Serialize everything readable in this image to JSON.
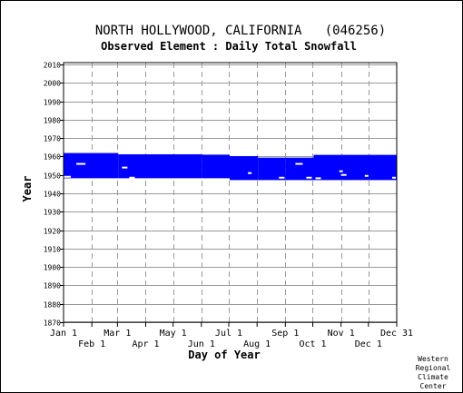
{
  "chart_data": {
    "type": "heatmap",
    "title": "NORTH HOLLYWOOD, CALIFORNIA   (046256)",
    "subtitle": "Observed Element : Daily Total Snowfall",
    "xlabel": "Day of Year",
    "ylabel": "Year",
    "ylim": [
      1870,
      2011
    ],
    "xlim": [
      0,
      365
    ],
    "y_ticks": [
      1870,
      1880,
      1890,
      1900,
      1910,
      1920,
      1930,
      1940,
      1950,
      1960,
      1970,
      1980,
      1990,
      2000,
      2010
    ],
    "x_ticks_top_row": [
      {
        "label": "Jan 1",
        "day": 0
      },
      {
        "label": "Mar 1",
        "day": 59
      },
      {
        "label": "May 1",
        "day": 120
      },
      {
        "label": "Jul 1",
        "day": 181
      },
      {
        "label": "Sep 1",
        "day": 243
      },
      {
        "label": "Nov 1",
        "day": 304
      },
      {
        "label": "Dec 31",
        "day": 365
      }
    ],
    "x_ticks_bottom_row": [
      {
        "label": "Feb 1",
        "day": 31
      },
      {
        "label": "Apr 1",
        "day": 90
      },
      {
        "label": "Jun 1",
        "day": 151
      },
      {
        "label": "Aug 1",
        "day": 212
      },
      {
        "label": "Oct 1",
        "day": 273
      },
      {
        "label": "Dec 1",
        "day": 334
      }
    ],
    "grid": true,
    "series": [
      {
        "color": "#0000ff",
        "segments": [
          {
            "day_start": 0,
            "day_end": 60,
            "year_start": 1948.2,
            "year_end": 1961.9
          },
          {
            "day_start": 60,
            "day_end": 152,
            "year_start": 1948.2,
            "year_end": 1961.2
          },
          {
            "day_start": 152,
            "day_end": 182,
            "year_start": 1948.2,
            "year_end": 1961.2
          },
          {
            "day_start": 182,
            "day_end": 213,
            "year_start": 1947.2,
            "year_end": 1960.2
          },
          {
            "day_start": 213,
            "day_end": 243,
            "year_start": 1947.2,
            "year_end": 1959.4
          },
          {
            "day_start": 243,
            "day_end": 274,
            "year_start": 1947.2,
            "year_end": 1959.4
          },
          {
            "day_start": 274,
            "day_end": 366,
            "year_start": 1947.2,
            "year_end": 1960.9
          }
        ],
        "missing_marks": [
          {
            "day_start": 0,
            "day_end": 8,
            "year": 1949
          },
          {
            "day_start": 14,
            "day_end": 24,
            "year": 1956
          },
          {
            "day_start": 64,
            "day_end": 70,
            "year": 1954
          },
          {
            "day_start": 72,
            "day_end": 78,
            "year": 1948.5
          },
          {
            "day_start": 152,
            "day_end": 214,
            "year": 1961.5
          },
          {
            "day_start": 202,
            "day_end": 206,
            "year": 1951
          },
          {
            "day_start": 236,
            "day_end": 242,
            "year": 1948.5
          },
          {
            "day_start": 254,
            "day_end": 262,
            "year": 1956
          },
          {
            "day_start": 266,
            "day_end": 272,
            "year": 1948.5
          },
          {
            "day_start": 276,
            "day_end": 282,
            "year": 1948.2
          },
          {
            "day_start": 302,
            "day_end": 306,
            "year": 1952
          },
          {
            "day_start": 304,
            "day_end": 310,
            "year": 1950
          },
          {
            "day_start": 330,
            "day_end": 334,
            "year": 1949.5
          },
          {
            "day_start": 360,
            "day_end": 364,
            "year": 1948.5
          }
        ]
      }
    ]
  },
  "footer": {
    "line1": "Western",
    "line2": "Regional",
    "line3": "Climate",
    "line4": "Center"
  }
}
